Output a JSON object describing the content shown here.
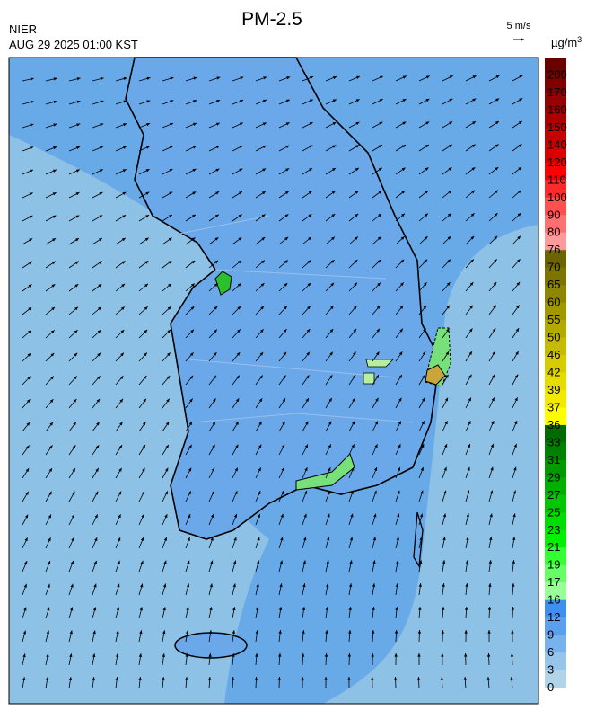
{
  "header": {
    "title": "PM-2.5",
    "agency": "NIER",
    "timestamp": "AUG 29 2025 01:00 KST",
    "wind_scale": "5 m/s"
  },
  "colorbar": {
    "unit": {
      "base": "µg/m",
      "sup": "3"
    },
    "labels": [
      200,
      170,
      160,
      150,
      140,
      120,
      110,
      100,
      90,
      80,
      76,
      70,
      65,
      60,
      55,
      50,
      46,
      42,
      39,
      37,
      36,
      33,
      31,
      29,
      27,
      25,
      23,
      21,
      19,
      17,
      16,
      12,
      9,
      6,
      3,
      0
    ],
    "colors": [
      "#6b0000",
      "#800000",
      "#960000",
      "#ad0000",
      "#c40000",
      "#db0000",
      "#ff0000",
      "#ff2a2a",
      "#ff5050",
      "#ff7070",
      "#ff9a9a",
      "#6b6400",
      "#7d7500",
      "#8f8600",
      "#a19800",
      "#b3aa00",
      "#c5bb00",
      "#d6cc00",
      "#e6dc00",
      "#f2e800",
      "#ffff00",
      "#006b00",
      "#008200",
      "#009900",
      "#00b000",
      "#00c700",
      "#00dd00",
      "#00f000",
      "#33ff33",
      "#66ff66",
      "#99ff99",
      "#3d8ff0",
      "#5aa0ef",
      "#78b2ee",
      "#96c4ea",
      "#b2d4e8"
    ]
  }
}
